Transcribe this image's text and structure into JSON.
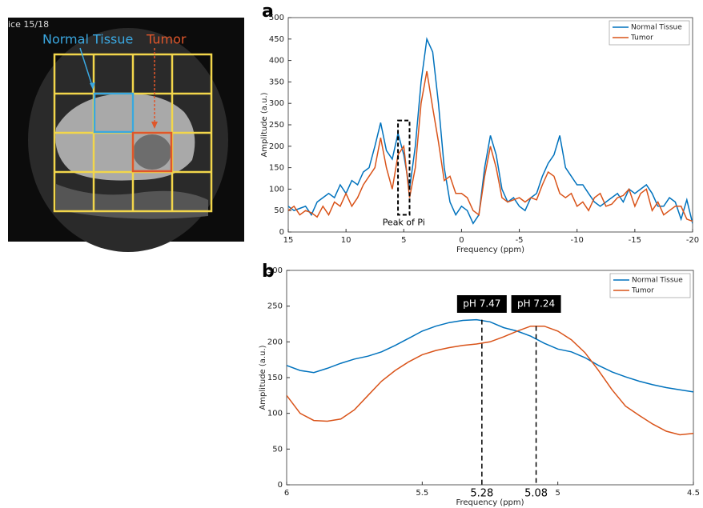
{
  "image": {
    "slice_label": "ice 15/18",
    "normal_label": "Normal Tissue",
    "tumor_label": "Tumor"
  },
  "chart_data": [
    {
      "type": "line",
      "panel_label": "a",
      "x_label": "Frequency (ppm)",
      "y_label": "Amplitude (a.u.)",
      "x": [
        15,
        14.5,
        14,
        13.5,
        13,
        12.5,
        12,
        11.5,
        11,
        10.5,
        10,
        9.5,
        9,
        8.5,
        8,
        7.5,
        7,
        6.5,
        6,
        5.5,
        5,
        4.5,
        4,
        3.5,
        3,
        2.5,
        2,
        1.5,
        1,
        0.5,
        0,
        -0.5,
        -1,
        -1.5,
        -2,
        -2.5,
        -3,
        -3.5,
        -4,
        -4.5,
        -5,
        -5.5,
        -6,
        -6.5,
        -7,
        -7.5,
        -8,
        -8.5,
        -9,
        -9.5,
        -10,
        -10.5,
        -11,
        -11.5,
        -12,
        -12.5,
        -13,
        -13.5,
        -14,
        -14.5,
        -15,
        -15.5,
        -16,
        -16.5,
        -17,
        -17.5,
        -18,
        -18.5,
        -19,
        -19.5,
        -20
      ],
      "series": [
        {
          "name": "Normal Tissue",
          "color": "#0072bd",
          "values": [
            60,
            50,
            55,
            60,
            40,
            70,
            80,
            90,
            80,
            110,
            90,
            120,
            110,
            140,
            150,
            200,
            255,
            190,
            170,
            230,
            180,
            100,
            200,
            350,
            450,
            420,
            300,
            150,
            70,
            40,
            60,
            50,
            20,
            40,
            150,
            225,
            180,
            100,
            70,
            80,
            60,
            50,
            80,
            90,
            130,
            160,
            180,
            225,
            150,
            130,
            110,
            110,
            90,
            70,
            60,
            70,
            80,
            90,
            70,
            100,
            90,
            100,
            110,
            90,
            60,
            60,
            80,
            70,
            30,
            75,
            20
          ]
        },
        {
          "name": "Tumor",
          "color": "#d95319",
          "values": [
            50,
            60,
            40,
            50,
            45,
            35,
            60,
            40,
            70,
            60,
            90,
            60,
            80,
            110,
            130,
            150,
            220,
            150,
            100,
            180,
            200,
            80,
            150,
            300,
            375,
            290,
            210,
            120,
            130,
            90,
            90,
            80,
            50,
            40,
            130,
            200,
            150,
            80,
            70,
            75,
            80,
            70,
            80,
            75,
            110,
            140,
            130,
            90,
            80,
            90,
            60,
            70,
            50,
            80,
            90,
            60,
            65,
            80,
            85,
            100,
            60,
            90,
            100,
            50,
            70,
            40,
            50,
            60,
            60,
            30,
            25
          ]
        }
      ],
      "xlim": [
        15,
        -20
      ],
      "xticks": [
        15,
        10,
        5,
        0,
        -5,
        -10,
        -15,
        -20
      ],
      "ylim": [
        0,
        500
      ],
      "yticks": [
        0,
        50,
        100,
        150,
        200,
        250,
        300,
        350,
        400,
        450,
        500
      ],
      "legend": "upper right",
      "annotations": [
        {
          "text": "Peak of Pi",
          "x_range": [
            5.5,
            4.5
          ],
          "y_range": [
            40,
            260
          ]
        }
      ]
    },
    {
      "type": "line",
      "panel_label": "b",
      "x_label": "Frequency (ppm)",
      "y_label": "Amplitude (a.u.)",
      "x": [
        6,
        5.95,
        5.9,
        5.85,
        5.8,
        5.75,
        5.7,
        5.65,
        5.6,
        5.55,
        5.5,
        5.45,
        5.4,
        5.35,
        5.3,
        5.25,
        5.2,
        5.15,
        5.1,
        5.05,
        5,
        4.95,
        4.9,
        4.85,
        4.8,
        4.75,
        4.7,
        4.65,
        4.6,
        4.55,
        4.5
      ],
      "series": [
        {
          "name": "Normal Tissue",
          "color": "#0072bd",
          "values": [
            167,
            160,
            157,
            163,
            170,
            176,
            180,
            186,
            195,
            205,
            215,
            222,
            227,
            230,
            231,
            228,
            220,
            215,
            208,
            198,
            190,
            186,
            178,
            167,
            158,
            151,
            145,
            140,
            136,
            133,
            130
          ]
        },
        {
          "name": "Tumor",
          "color": "#d95319",
          "values": [
            125,
            100,
            90,
            89,
            92,
            105,
            125,
            145,
            160,
            172,
            182,
            188,
            192,
            195,
            197,
            200,
            207,
            215,
            222,
            222,
            215,
            203,
            185,
            160,
            133,
            110,
            97,
            85,
            75,
            70,
            72
          ]
        }
      ],
      "xlim": [
        6,
        4.5
      ],
      "xticks": [
        6,
        5.5,
        5,
        4.5
      ],
      "ylim": [
        0,
        300
      ],
      "yticks": [
        0,
        50,
        100,
        150,
        200,
        250,
        300
      ],
      "legend": "upper right",
      "annotations": [
        {
          "text": "pH 7.47",
          "x": 5.28,
          "y": 231
        },
        {
          "text": "pH 7.24",
          "x": 5.08,
          "y": 222
        }
      ]
    }
  ]
}
